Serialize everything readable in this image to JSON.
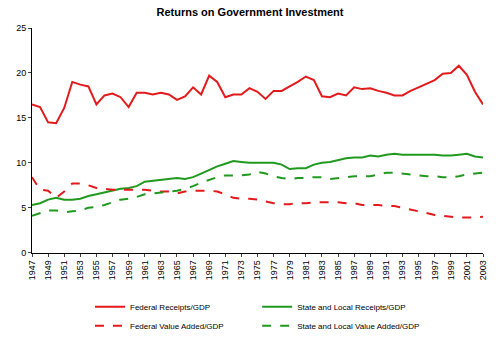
{
  "chart_data": {
    "type": "line",
    "title": "Returns on Government Investment",
    "x": [
      1947,
      1948,
      1949,
      1950,
      1951,
      1952,
      1953,
      1954,
      1955,
      1956,
      1957,
      1958,
      1959,
      1960,
      1961,
      1962,
      1963,
      1964,
      1965,
      1966,
      1967,
      1968,
      1969,
      1970,
      1971,
      1972,
      1973,
      1974,
      1975,
      1976,
      1977,
      1978,
      1979,
      1980,
      1981,
      1982,
      1983,
      1984,
      1985,
      1986,
      1987,
      1988,
      1989,
      1990,
      1991,
      1992,
      1993,
      1994,
      1995,
      1996,
      1997,
      1998,
      1999,
      2000,
      2001,
      2002,
      2003
    ],
    "series": [
      {
        "name": "Federal Receipts/GDP",
        "color": "#e31a1c",
        "line_style": "solid",
        "values": [
          16.5,
          16.2,
          14.5,
          14.4,
          16.1,
          19.0,
          18.7,
          18.5,
          16.5,
          17.5,
          17.7,
          17.3,
          16.2,
          17.8,
          17.8,
          17.6,
          17.8,
          17.6,
          17.0,
          17.4,
          18.4,
          17.6,
          19.7,
          19.0,
          17.3,
          17.6,
          17.6,
          18.3,
          17.9,
          17.1,
          18.0,
          18.0,
          18.5,
          19.0,
          19.6,
          19.2,
          17.4,
          17.3,
          17.7,
          17.5,
          18.4,
          18.2,
          18.3,
          18.0,
          17.8,
          17.5,
          17.5,
          18.0,
          18.4,
          18.8,
          19.2,
          19.9,
          20.0,
          20.8,
          19.8,
          17.9,
          16.5
        ]
      },
      {
        "name": "State and Local Receipts/GDP",
        "color": "#1f9a1f",
        "line_style": "solid",
        "values": [
          5.3,
          5.5,
          5.9,
          6.1,
          5.9,
          5.9,
          6.0,
          6.3,
          6.5,
          6.7,
          6.9,
          7.1,
          7.2,
          7.4,
          7.9,
          8.0,
          8.1,
          8.2,
          8.3,
          8.2,
          8.4,
          8.8,
          9.2,
          9.6,
          9.9,
          10.2,
          10.1,
          10.0,
          10.0,
          10.0,
          10.0,
          9.8,
          9.3,
          9.4,
          9.4,
          9.8,
          10.0,
          10.1,
          10.3,
          10.5,
          10.6,
          10.6,
          10.8,
          10.7,
          10.9,
          11.0,
          10.9,
          10.9,
          10.9,
          10.9,
          10.9,
          10.8,
          10.8,
          10.9,
          11.0,
          10.7,
          10.6
        ]
      },
      {
        "name": "Federal Value Added/GDP",
        "color": "#e31a1c",
        "line_style": "dashed",
        "values": [
          8.4,
          7.0,
          6.9,
          6.1,
          6.8,
          7.7,
          7.7,
          7.5,
          7.2,
          7.1,
          7.0,
          7.0,
          7.0,
          7.0,
          7.0,
          6.9,
          6.8,
          6.8,
          6.6,
          6.8,
          6.9,
          6.9,
          6.9,
          6.8,
          6.5,
          6.1,
          6.0,
          6.0,
          5.9,
          5.7,
          5.5,
          5.4,
          5.4,
          5.5,
          5.5,
          5.6,
          5.6,
          5.6,
          5.6,
          5.5,
          5.5,
          5.3,
          5.3,
          5.3,
          5.2,
          5.2,
          5.0,
          4.8,
          4.6,
          4.4,
          4.2,
          4.1,
          4.0,
          3.9,
          3.9,
          3.9,
          4.0
        ]
      },
      {
        "name": "State and Local Value Added/GDP",
        "color": "#1f9a1f",
        "line_style": "dashed",
        "values": [
          4.1,
          4.4,
          4.7,
          4.7,
          4.5,
          4.6,
          4.7,
          5.0,
          5.1,
          5.3,
          5.6,
          5.9,
          6.0,
          6.2,
          6.5,
          6.6,
          6.7,
          6.8,
          6.9,
          7.1,
          7.4,
          7.8,
          8.1,
          8.4,
          8.6,
          8.6,
          8.6,
          8.7,
          9.0,
          8.8,
          8.5,
          8.3,
          8.2,
          8.3,
          8.3,
          8.4,
          8.4,
          8.2,
          8.3,
          8.4,
          8.5,
          8.5,
          8.5,
          8.7,
          8.9,
          8.9,
          8.8,
          8.7,
          8.6,
          8.5,
          8.5,
          8.4,
          8.4,
          8.5,
          8.7,
          8.8,
          8.9
        ]
      }
    ],
    "xlim": [
      1947,
      2003
    ],
    "xticks": [
      1947,
      1949,
      1951,
      1953,
      1955,
      1957,
      1959,
      1961,
      1963,
      1965,
      1967,
      1969,
      1971,
      1973,
      1975,
      1977,
      1979,
      1981,
      1983,
      1985,
      1987,
      1989,
      1991,
      1993,
      1995,
      1997,
      1999,
      2001,
      2003
    ],
    "ylim": [
      0,
      25
    ],
    "yticks": [
      0,
      5,
      10,
      15,
      20,
      25
    ],
    "grid": false,
    "legend": "bottom"
  }
}
